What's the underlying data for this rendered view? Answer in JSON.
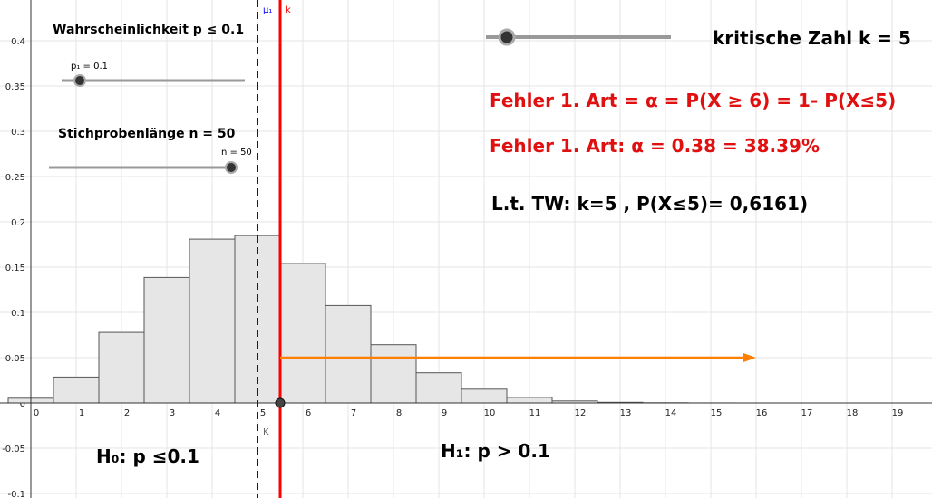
{
  "chart_data": {
    "type": "bar",
    "x": [
      0,
      1,
      2,
      3,
      4,
      5,
      6,
      7,
      8,
      9,
      10,
      11,
      12,
      13,
      14,
      15,
      16,
      17,
      18,
      19
    ],
    "values": [
      0.0052,
      0.0286,
      0.0779,
      0.1386,
      0.1809,
      0.1849,
      0.1541,
      0.1076,
      0.0643,
      0.0333,
      0.0152,
      0.0061,
      0.0022,
      0.0007,
      0.0002,
      5e-05,
      1e-05,
      0,
      0,
      0
    ],
    "color": "#e6e6e6",
    "xlim": [
      -0.68,
      19.88
    ],
    "ylim": [
      -0.105,
      0.445
    ],
    "xticks": [
      0,
      1,
      2,
      3,
      4,
      5,
      6,
      7,
      8,
      9,
      10,
      11,
      12,
      13,
      14,
      15,
      16,
      17,
      18,
      19
    ],
    "yticks": [
      -0.1,
      -0.05,
      0,
      0.05,
      0.1,
      0.15,
      0.2,
      0.25,
      0.3,
      0.35,
      0.4
    ],
    "grid": true,
    "vlines": [
      {
        "name": "μ₁",
        "x": 5,
        "color": "#0000ff",
        "dashed": true,
        "foot_label": "K"
      },
      {
        "name": "k",
        "x": 5.5,
        "color": "#ff0000",
        "dashed": false
      }
    ],
    "arrow": {
      "x": [
        5.5,
        16
      ],
      "y": 0.05,
      "color": "#ff7f00"
    },
    "point": {
      "x": 5.5,
      "y": 0
    }
  },
  "ui": {
    "p_title": "Wahrscheinlichkeit p ≤ 0.1",
    "p_slider": "p₁ = 0.1",
    "n_title": "Stichprobenlänge n = 50",
    "n_slider": "n = 50",
    "k_title": "kritische Zahl k = 5",
    "error_formula": "Fehler 1. Art = α = P(X ≥ 6) = 1- P(X≤5)",
    "error_value": "Fehler 1. Art: α = 0.38 = 38.39%",
    "table_value": "L.t. TW:  k=5  , P(X≤5)= 0,6161)",
    "h0": "H₀: p ≤0.1",
    "h1": "H₁: p > 0.1"
  }
}
